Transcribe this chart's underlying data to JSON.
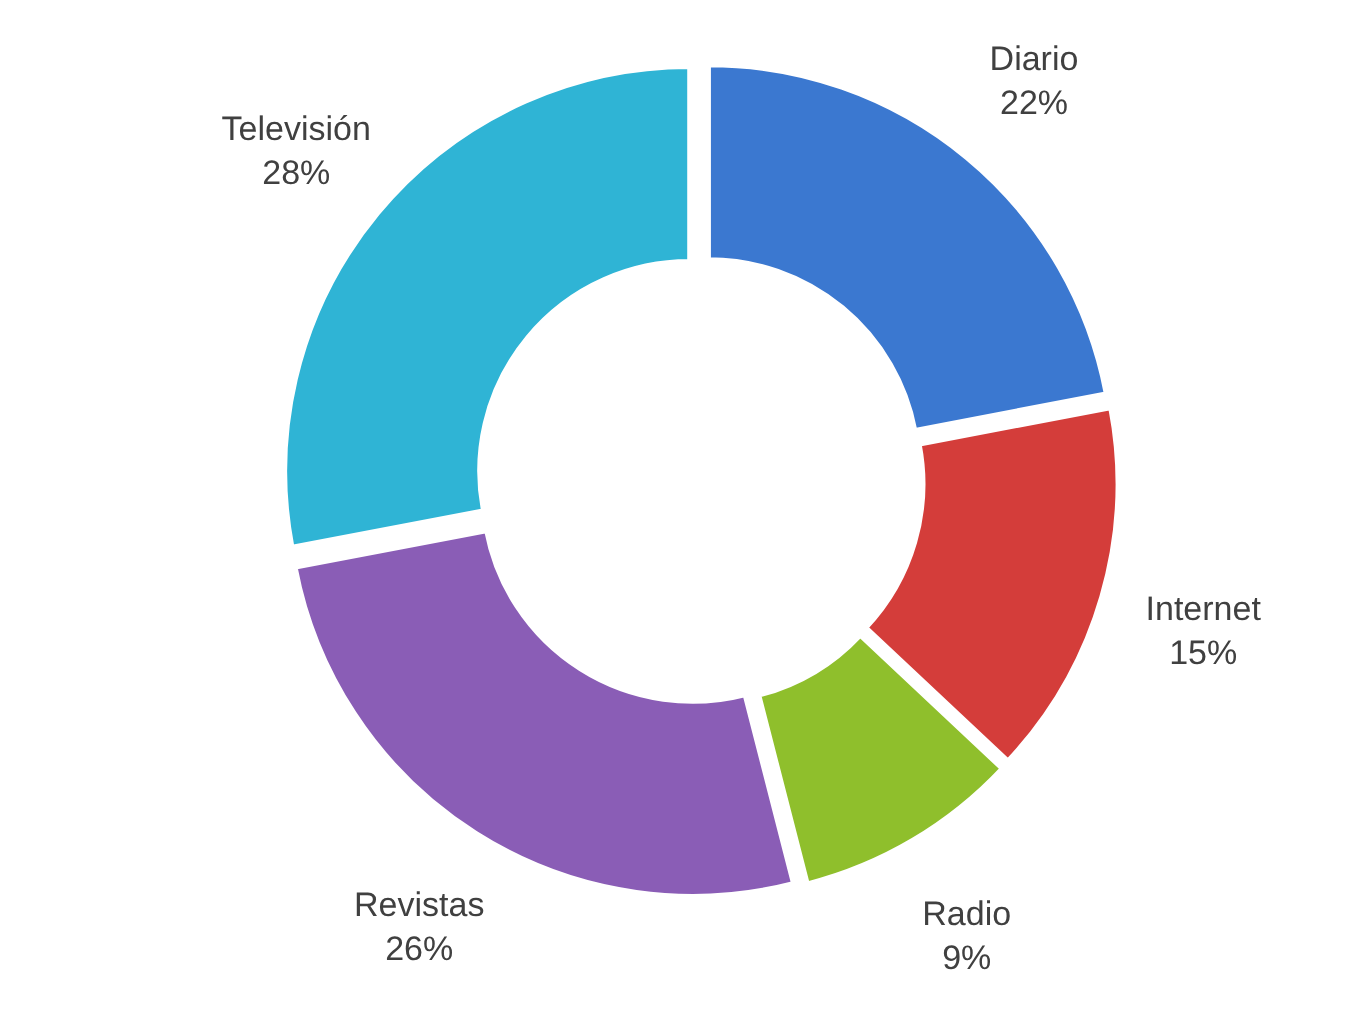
{
  "chart_data": {
    "type": "donut",
    "categories": [
      "Diario",
      "Internet",
      "Radio",
      "Revistas",
      "Televisión"
    ],
    "values": [
      22,
      15,
      9,
      26,
      28
    ],
    "colors": [
      "#3b78d0",
      "#d43d3a",
      "#8fbf2c",
      "#8a5db6",
      "#2fb4d5"
    ],
    "value_labels": [
      "22%",
      "15%",
      "9%",
      "26%",
      "28%"
    ]
  }
}
